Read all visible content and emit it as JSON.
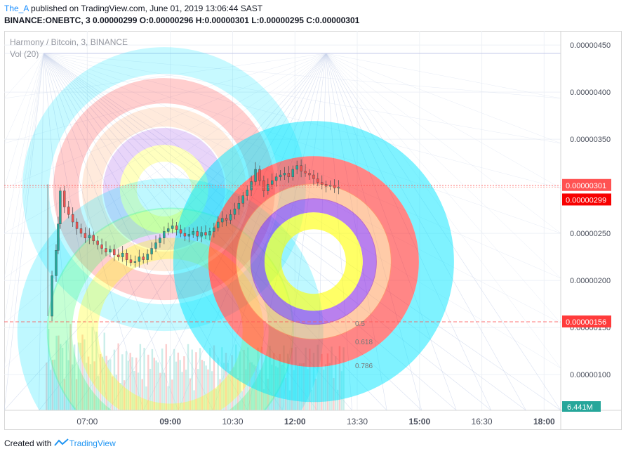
{
  "header": {
    "author": "The_A",
    "published_text": " published on TradingView.com, June 01, 2019 13:06:44 SAST",
    "symbol_line": "BINANCE:ONEBTC, 3  0.00000299 O:0.00000296 H:0.00000301 L:0.00000295 C:0.00000301"
  },
  "legend": {
    "title": "Harmony / Bitcoin, 3, BINANCE",
    "indicator": "Vol (20)"
  },
  "price_badges": [
    {
      "label": "0.00000301",
      "value": 3.01e-06,
      "color": "#ff5252"
    },
    {
      "label": "0.00000299",
      "value": 2.99e-06,
      "color": "#f70000"
    },
    {
      "label": "0.00000156",
      "value": 1.56e-06,
      "color": "#ff3b3b"
    }
  ],
  "volume_badge": {
    "label": "6.441M",
    "color": "#26a69a"
  },
  "fib_labels": [
    "0.5",
    "0.618",
    "0.786"
  ],
  "footer": {
    "created_with": "Created with",
    "brand": "TradingView"
  },
  "colors": {
    "up": "#26a69a",
    "down": "#ef5350",
    "ring_cyan": "#00e5ff",
    "ring_red": "#ff2222",
    "ring_orange": "#ffa060",
    "ring_purple": "#8a2be2",
    "ring_yellow": "#ffff00",
    "ring_green": "#33ff66"
  },
  "chart_data": {
    "type": "candlestick",
    "symbol": "BINANCE:ONEBTC",
    "interval": "3",
    "y_ticks": [
      {
        "label": "0.00000450",
        "value": 4.5e-06
      },
      {
        "label": "0.00000400",
        "value": 4e-06
      },
      {
        "label": "0.00000350",
        "value": 3.5e-06
      },
      {
        "label": "0.00000250",
        "value": 2.5e-06
      },
      {
        "label": "0.00000200",
        "value": 2e-06
      },
      {
        "label": "0.00000150",
        "value": 1.5e-06
      },
      {
        "label": "0.00000100",
        "value": 1e-06
      }
    ],
    "ylim": [
      6.2e-07,
      4.65e-06
    ],
    "x_ticks": [
      {
        "label": "07:00",
        "hour": 7.0
      },
      {
        "label": "09:00",
        "hour": 9.0
      },
      {
        "label": "10:30",
        "hour": 10.5
      },
      {
        "label": "12:00",
        "hour": 12.0
      },
      {
        "label": "13:30",
        "hour": 13.5
      },
      {
        "label": "15:00",
        "hour": 15.0
      },
      {
        "label": "16:30",
        "hour": 16.5
      },
      {
        "label": "18:00",
        "hour": 18.0
      }
    ],
    "xlim": [
      5.0,
      18.4
    ],
    "close_series": [
      [
        6.1,
        1.62
      ],
      [
        6.15,
        2.05
      ],
      [
        6.25,
        2.32
      ],
      [
        6.3,
        2.6
      ],
      [
        6.35,
        2.95
      ],
      [
        6.45,
        2.78
      ],
      [
        6.55,
        2.7
      ],
      [
        6.65,
        2.62
      ],
      [
        6.75,
        2.55
      ],
      [
        6.85,
        2.5
      ],
      [
        6.95,
        2.45
      ],
      [
        7.05,
        2.48
      ],
      [
        7.15,
        2.42
      ],
      [
        7.25,
        2.38
      ],
      [
        7.35,
        2.34
      ],
      [
        7.45,
        2.3
      ],
      [
        7.55,
        2.33
      ],
      [
        7.65,
        2.27
      ],
      [
        7.75,
        2.25
      ],
      [
        7.85,
        2.29
      ],
      [
        7.95,
        2.22
      ],
      [
        8.05,
        2.19
      ],
      [
        8.15,
        2.2
      ],
      [
        8.25,
        2.25
      ],
      [
        8.35,
        2.22
      ],
      [
        8.45,
        2.28
      ],
      [
        8.55,
        2.34
      ],
      [
        8.65,
        2.4
      ],
      [
        8.75,
        2.45
      ],
      [
        8.85,
        2.52
      ],
      [
        8.95,
        2.55
      ],
      [
        9.05,
        2.58
      ],
      [
        9.15,
        2.54
      ],
      [
        9.25,
        2.5
      ],
      [
        9.35,
        2.47
      ],
      [
        9.45,
        2.49
      ],
      [
        9.55,
        2.52
      ],
      [
        9.65,
        2.47
      ],
      [
        9.75,
        2.51
      ],
      [
        9.85,
        2.48
      ],
      [
        9.95,
        2.52
      ],
      [
        10.05,
        2.56
      ],
      [
        10.15,
        2.62
      ],
      [
        10.25,
        2.66
      ],
      [
        10.35,
        2.64
      ],
      [
        10.45,
        2.7
      ],
      [
        10.55,
        2.76
      ],
      [
        10.65,
        2.82
      ],
      [
        10.75,
        2.9
      ],
      [
        10.85,
        2.96
      ],
      [
        10.95,
        3.05
      ],
      [
        11.05,
        3.18
      ],
      [
        11.15,
        3.06
      ],
      [
        11.25,
        2.95
      ],
      [
        11.35,
        3.02
      ],
      [
        11.45,
        3.06
      ],
      [
        11.55,
        3.1
      ],
      [
        11.65,
        3.12
      ],
      [
        11.75,
        3.14
      ],
      [
        11.85,
        3.1
      ],
      [
        11.95,
        3.18
      ],
      [
        12.05,
        3.22
      ],
      [
        12.15,
        3.16
      ],
      [
        12.25,
        3.14
      ],
      [
        12.35,
        3.12
      ],
      [
        12.45,
        3.08
      ],
      [
        12.55,
        3.04
      ],
      [
        12.65,
        3.02
      ],
      [
        12.75,
        3.0
      ],
      [
        12.85,
        3.01
      ],
      [
        12.95,
        2.98
      ],
      [
        13.05,
        2.99
      ]
    ],
    "close_series_note_units": "price in 1e-6 BTC"
  }
}
